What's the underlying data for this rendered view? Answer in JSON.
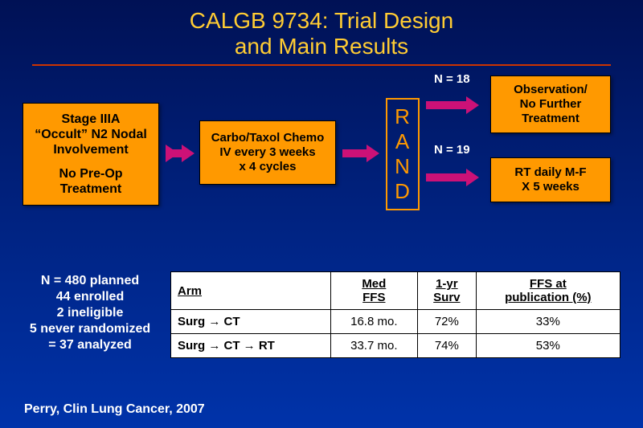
{
  "title_line1": "CALGB 9734: Trial Design",
  "title_line2": "and Main Results",
  "rule_color": "#cc3300",
  "box_bg": "#ff9900",
  "arrow_color": "#cc1177",
  "rand_border": "#ff9900",
  "flow": {
    "stage_l1": "Stage IIIA",
    "stage_l2": "“Occult” N2 Nodal",
    "stage_l3": "Involvement",
    "stage_l4": "No Pre-Op",
    "stage_l5": "Treatment",
    "chemo_l1": "Carbo/Taxol Chemo",
    "chemo_l2": "IV every 3 weeks",
    "chemo_l3": "x 4 cycles",
    "rand_text": "R\nA\nN\nD",
    "n_top": "N = 18",
    "n_bot": "N = 19",
    "obs_l1": "Observation/",
    "obs_l2": "No Further",
    "obs_l3": "Treatment",
    "rt_l1": "RT daily M-F",
    "rt_l2": "X 5 weeks"
  },
  "enroll": {
    "l1": "N = 480 planned",
    "l2": "44 enrolled",
    "l3": "2 ineligible",
    "l4": "5 never randomized",
    "l5": "= 37 analyzed"
  },
  "table": {
    "cols": [
      "Arm",
      "Med FFS",
      "1-yr Surv",
      "FFS at publication (%)"
    ],
    "rows": [
      [
        "Surg → CT",
        "16.8 mo.",
        "72%",
        "33%"
      ],
      [
        "Surg → CT → RT",
        "33.7 mo.",
        "74%",
        "53%"
      ]
    ]
  },
  "citation": "Perry, Clin Lung Cancer, 2007"
}
